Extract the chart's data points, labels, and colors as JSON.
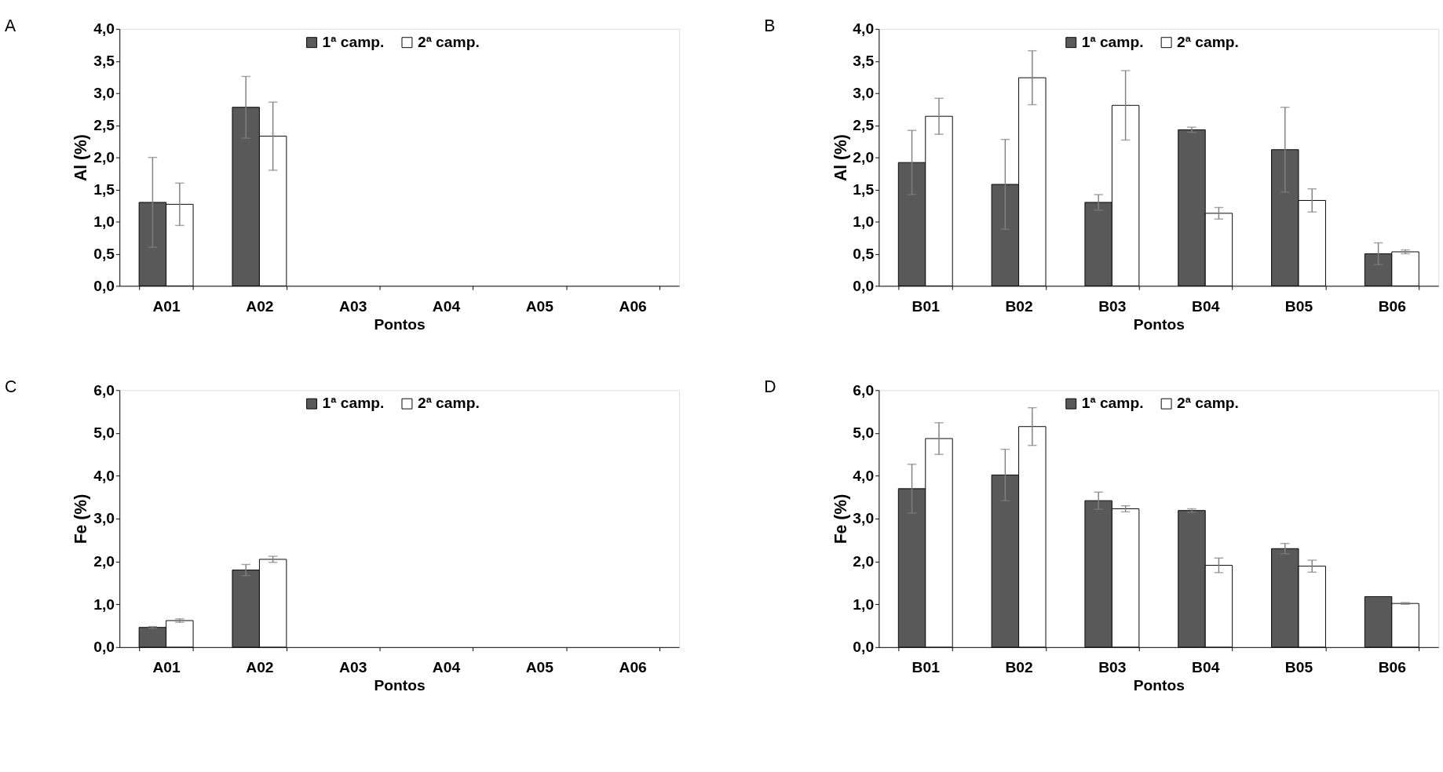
{
  "chart_data": [
    {
      "type": "bar",
      "title": "A",
      "xlabel": "Pontos",
      "ylabel": "Al (%)",
      "categories": [
        "A01",
        "A02",
        "A03",
        "A04",
        "A05",
        "A06"
      ],
      "ylim": [
        0,
        4
      ],
      "yticks": [
        {
          "value": 0,
          "label": "0,0"
        },
        {
          "value": 0.5,
          "label": "0,5"
        },
        {
          "value": 1,
          "label": "1,0"
        },
        {
          "value": 1.5,
          "label": "1,5"
        },
        {
          "value": 2,
          "label": "2,0"
        },
        {
          "value": 2.5,
          "label": "2,5"
        },
        {
          "value": 3,
          "label": "3,0"
        },
        {
          "value": 3.5,
          "label": "3,5"
        },
        {
          "value": 4,
          "label": "4,0"
        }
      ],
      "grid": false,
      "legend": "top",
      "series": [
        {
          "name": "1ª camp.",
          "color": "#595959",
          "values": [
            1.3,
            2.78,
            null,
            null,
            null,
            null
          ],
          "errors": [
            0.7,
            0.48,
            null,
            null,
            null,
            null
          ]
        },
        {
          "name": "2ª camp.",
          "color": "#ffffff",
          "values": [
            1.27,
            2.33,
            null,
            null,
            null,
            null
          ],
          "errors": [
            0.33,
            0.53,
            null,
            null,
            null,
            null
          ]
        }
      ]
    },
    {
      "type": "bar",
      "title": "B",
      "xlabel": "Pontos",
      "ylabel": "Al (%)",
      "categories": [
        "B01",
        "B02",
        "B03",
        "B04",
        "B05",
        "B06"
      ],
      "ylim": [
        0,
        4
      ],
      "yticks": [
        {
          "value": 0,
          "label": "0,0"
        },
        {
          "value": 0.5,
          "label": "0,5"
        },
        {
          "value": 1,
          "label": "1,0"
        },
        {
          "value": 1.5,
          "label": "1,5"
        },
        {
          "value": 2,
          "label": "2,0"
        },
        {
          "value": 2.5,
          "label": "2,5"
        },
        {
          "value": 3,
          "label": "3,0"
        },
        {
          "value": 3.5,
          "label": "3,5"
        },
        {
          "value": 4,
          "label": "4,0"
        }
      ],
      "grid": false,
      "legend": "top",
      "series": [
        {
          "name": "1ª camp.",
          "color": "#595959",
          "values": [
            1.92,
            1.58,
            1.3,
            2.43,
            2.12,
            0.5
          ],
          "errors": [
            0.5,
            0.7,
            0.12,
            0.04,
            0.66,
            0.17
          ]
        },
        {
          "name": "2ª camp.",
          "color": "#ffffff",
          "values": [
            2.64,
            3.24,
            2.81,
            1.13,
            1.33,
            0.53
          ],
          "errors": [
            0.28,
            0.42,
            0.54,
            0.09,
            0.18,
            0.03
          ]
        }
      ]
    },
    {
      "type": "bar",
      "title": "C",
      "xlabel": "Pontos",
      "ylabel": "Fe (%)",
      "categories": [
        "A01",
        "A02",
        "A03",
        "A04",
        "A05",
        "A06"
      ],
      "ylim": [
        0,
        6
      ],
      "yticks": [
        {
          "value": 0,
          "label": "0,0"
        },
        {
          "value": 1,
          "label": "1,0"
        },
        {
          "value": 2,
          "label": "2,0"
        },
        {
          "value": 3,
          "label": "3,0"
        },
        {
          "value": 4,
          "label": "4,0"
        },
        {
          "value": 5,
          "label": "5,0"
        },
        {
          "value": 6,
          "label": "6,0"
        }
      ],
      "grid": false,
      "legend": "top",
      "series": [
        {
          "name": "1ª camp.",
          "color": "#595959",
          "values": [
            0.46,
            1.8,
            null,
            null,
            null,
            null
          ],
          "errors": [
            0.02,
            0.13,
            null,
            null,
            null,
            null
          ]
        },
        {
          "name": "2ª camp.",
          "color": "#ffffff",
          "values": [
            0.62,
            2.05,
            null,
            null,
            null,
            null
          ],
          "errors": [
            0.04,
            0.07,
            null,
            null,
            null,
            null
          ]
        }
      ]
    },
    {
      "type": "bar",
      "title": "D",
      "xlabel": "Pontos",
      "ylabel": "Fe (%)",
      "categories": [
        "B01",
        "B02",
        "B03",
        "B04",
        "B05",
        "B06"
      ],
      "ylim": [
        0,
        6
      ],
      "yticks": [
        {
          "value": 0,
          "label": "0,0"
        },
        {
          "value": 1,
          "label": "1,0"
        },
        {
          "value": 2,
          "label": "2,0"
        },
        {
          "value": 3,
          "label": "3,0"
        },
        {
          "value": 4,
          "label": "4,0"
        },
        {
          "value": 5,
          "label": "5,0"
        },
        {
          "value": 6,
          "label": "6,0"
        }
      ],
      "grid": false,
      "legend": "top",
      "series": [
        {
          "name": "1ª camp.",
          "color": "#595959",
          "values": [
            3.7,
            4.02,
            3.42,
            3.19,
            2.3,
            1.18
          ],
          "errors": [
            0.57,
            0.6,
            0.2,
            0.04,
            0.12,
            null
          ]
        },
        {
          "name": "2ª camp.",
          "color": "#ffffff",
          "values": [
            4.87,
            5.15,
            3.23,
            1.91,
            1.89,
            1.02
          ],
          "errors": [
            0.37,
            0.44,
            0.07,
            0.17,
            0.14,
            0.02
          ]
        }
      ]
    }
  ]
}
